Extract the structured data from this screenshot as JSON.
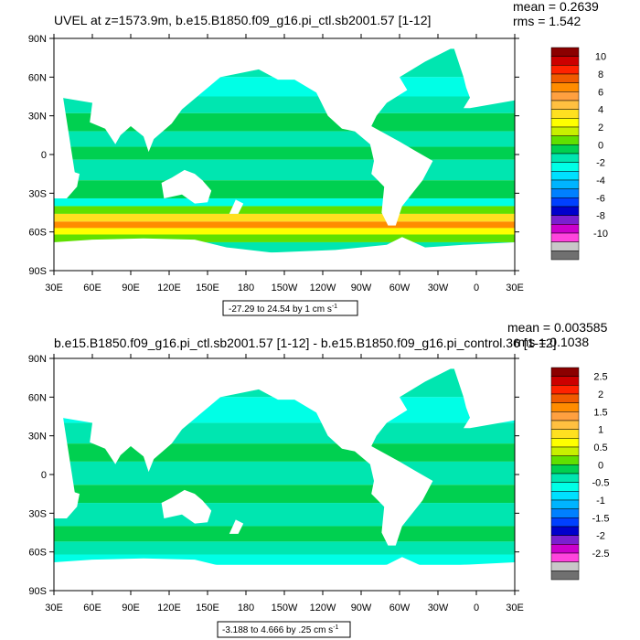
{
  "panels": [
    {
      "title": "UVEL at z=1573.9m, b.e15.B1850.f09_g16.pi_ctl.sb2001.57 [1-12]",
      "stats": {
        "mean": "mean = 0.2639",
        "rms": "rms = 1.542"
      },
      "range_note": "-27.29 to 24.54 by 1 cm s",
      "units_exp": "-1"
    },
    {
      "title": "b.e15.B1850.f09_g16.pi_ctl.sb2001.57 [1-12] - b.e15.B1850.f09_g16.pi_control.36 [1-12]",
      "stats": {
        "mean": "mean = 0.003585",
        "rms": "rms = 0.1038"
      },
      "range_note": "-3.188 to 4.666 by .25 cm s",
      "units_exp": "-1"
    }
  ],
  "chart_data": [
    {
      "type": "heatmap",
      "title": "UVEL at z=1573.9m, b.e15.B1850.f09_g16.pi_ctl.sb2001.57 [1-12]",
      "x_ticks": [
        "30E",
        "60E",
        "90E",
        "120E",
        "150E",
        "180",
        "150W",
        "120W",
        "90W",
        "60W",
        "30W",
        "0",
        "30E"
      ],
      "y_ticks": [
        "90N",
        "60N",
        "30N",
        "0",
        "30S",
        "60S",
        "90S"
      ],
      "xlim": [
        30,
        390
      ],
      "ylim": [
        -90,
        90
      ],
      "colorbar": {
        "labels": [
          "10",
          "8",
          "6",
          "4",
          "2",
          "0",
          "-2",
          "-4",
          "-6",
          "-8",
          "-10"
        ],
        "colors": [
          "#8b0000",
          "#cc0000",
          "#ff2200",
          "#f05a00",
          "#ff8c00",
          "#ffa040",
          "#ffc040",
          "#ffe020",
          "#ffff00",
          "#c8f000",
          "#60e000",
          "#00d050",
          "#00e6b0",
          "#00ffe6",
          "#00e0ff",
          "#00b4ff",
          "#0080ff",
          "#0040ff",
          "#0000cc",
          "#7a1fd0",
          "#cc00cc",
          "#ff44dd",
          "#c8c8c8",
          "#707070"
        ]
      },
      "stats": {
        "mean": 0.2639,
        "rms": 1.542
      },
      "range": {
        "min": -27.29,
        "max": 24.54,
        "interval": 1,
        "units": "cm s^-1"
      }
    },
    {
      "type": "heatmap",
      "title": "b.e15.B1850.f09_g16.pi_ctl.sb2001.57 [1-12] - b.e15.B1850.f09_g16.pi_control.36 [1-12]",
      "x_ticks": [
        "30E",
        "60E",
        "90E",
        "120E",
        "150E",
        "180",
        "150W",
        "120W",
        "90W",
        "60W",
        "30W",
        "0",
        "30E"
      ],
      "y_ticks": [
        "90N",
        "60N",
        "30N",
        "0",
        "30S",
        "60S",
        "90S"
      ],
      "xlim": [
        30,
        390
      ],
      "ylim": [
        -90,
        90
      ],
      "colorbar": {
        "labels": [
          "2.5",
          "2",
          "1.5",
          "1",
          "0.5",
          "0",
          "-0.5",
          "-1",
          "-1.5",
          "-2",
          "-2.5"
        ],
        "colors": [
          "#8b0000",
          "#cc0000",
          "#ff2200",
          "#f05a00",
          "#ff8c00",
          "#ffa040",
          "#ffc040",
          "#ffe020",
          "#ffff00",
          "#c8f000",
          "#60e000",
          "#00d050",
          "#00e6b0",
          "#00ffe6",
          "#00e0ff",
          "#00b4ff",
          "#0080ff",
          "#0040ff",
          "#0000cc",
          "#7a1fd0",
          "#cc00cc",
          "#ff44dd",
          "#c8c8c8",
          "#707070"
        ]
      },
      "stats": {
        "mean": 0.003585,
        "rms": 0.1038
      },
      "range": {
        "min": -3.188,
        "max": 4.666,
        "interval": 0.25,
        "units": "cm s^-1"
      }
    }
  ]
}
